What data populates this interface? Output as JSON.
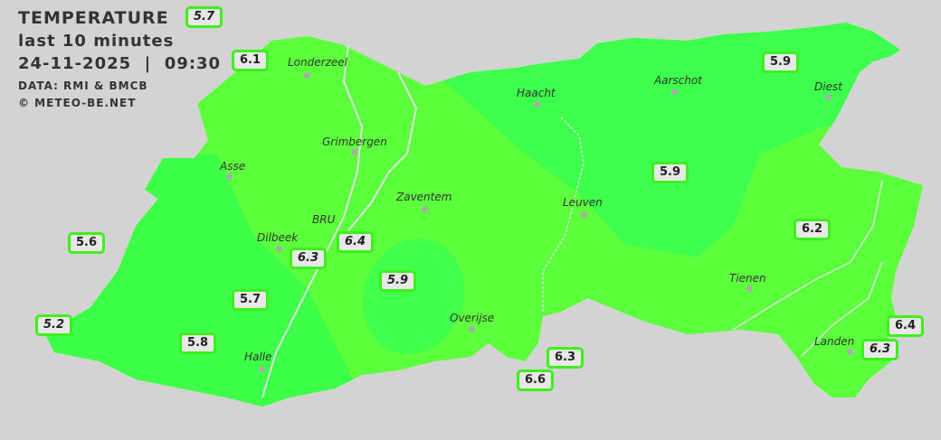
{
  "header": {
    "title": "TEMPERATURE",
    "subtitle": "last 10 minutes",
    "datetime": "24-11-2025  |  09:30",
    "data_source": "DATA: RMI & BMCB",
    "copyright": "© METEO-BE.NET"
  },
  "colors": {
    "background": "#d3d3d3",
    "zone_warm": "#5cff3c",
    "zone_cool": "#3cff50",
    "label_border": "#3cf01c"
  },
  "cities": [
    "Londerzeel",
    "Haacht",
    "Aarschot",
    "Diest",
    "Grimbergen",
    "Asse",
    "Zaventem",
    "Leuven",
    "Dilbeek",
    "BRU",
    "Tienen",
    "Overijse",
    "Halle",
    "Landen"
  ],
  "stations": [
    {
      "value": "5.7",
      "italic": true
    },
    {
      "value": "6.1",
      "italic": false
    },
    {
      "value": "5.9",
      "italic": false
    },
    {
      "value": "5.9",
      "italic": false
    },
    {
      "value": "6.2",
      "italic": false
    },
    {
      "value": "5.6",
      "italic": false
    },
    {
      "value": "6.4",
      "italic": true
    },
    {
      "value": "6.3",
      "italic": true
    },
    {
      "value": "5.9",
      "italic": true
    },
    {
      "value": "5.7",
      "italic": false
    },
    {
      "value": "5.2",
      "italic": true
    },
    {
      "value": "5.8",
      "italic": false
    },
    {
      "value": "6.3",
      "italic": false
    },
    {
      "value": "6.6",
      "italic": false
    },
    {
      "value": "6.4",
      "italic": false
    },
    {
      "value": "6.3",
      "italic": true
    }
  ]
}
